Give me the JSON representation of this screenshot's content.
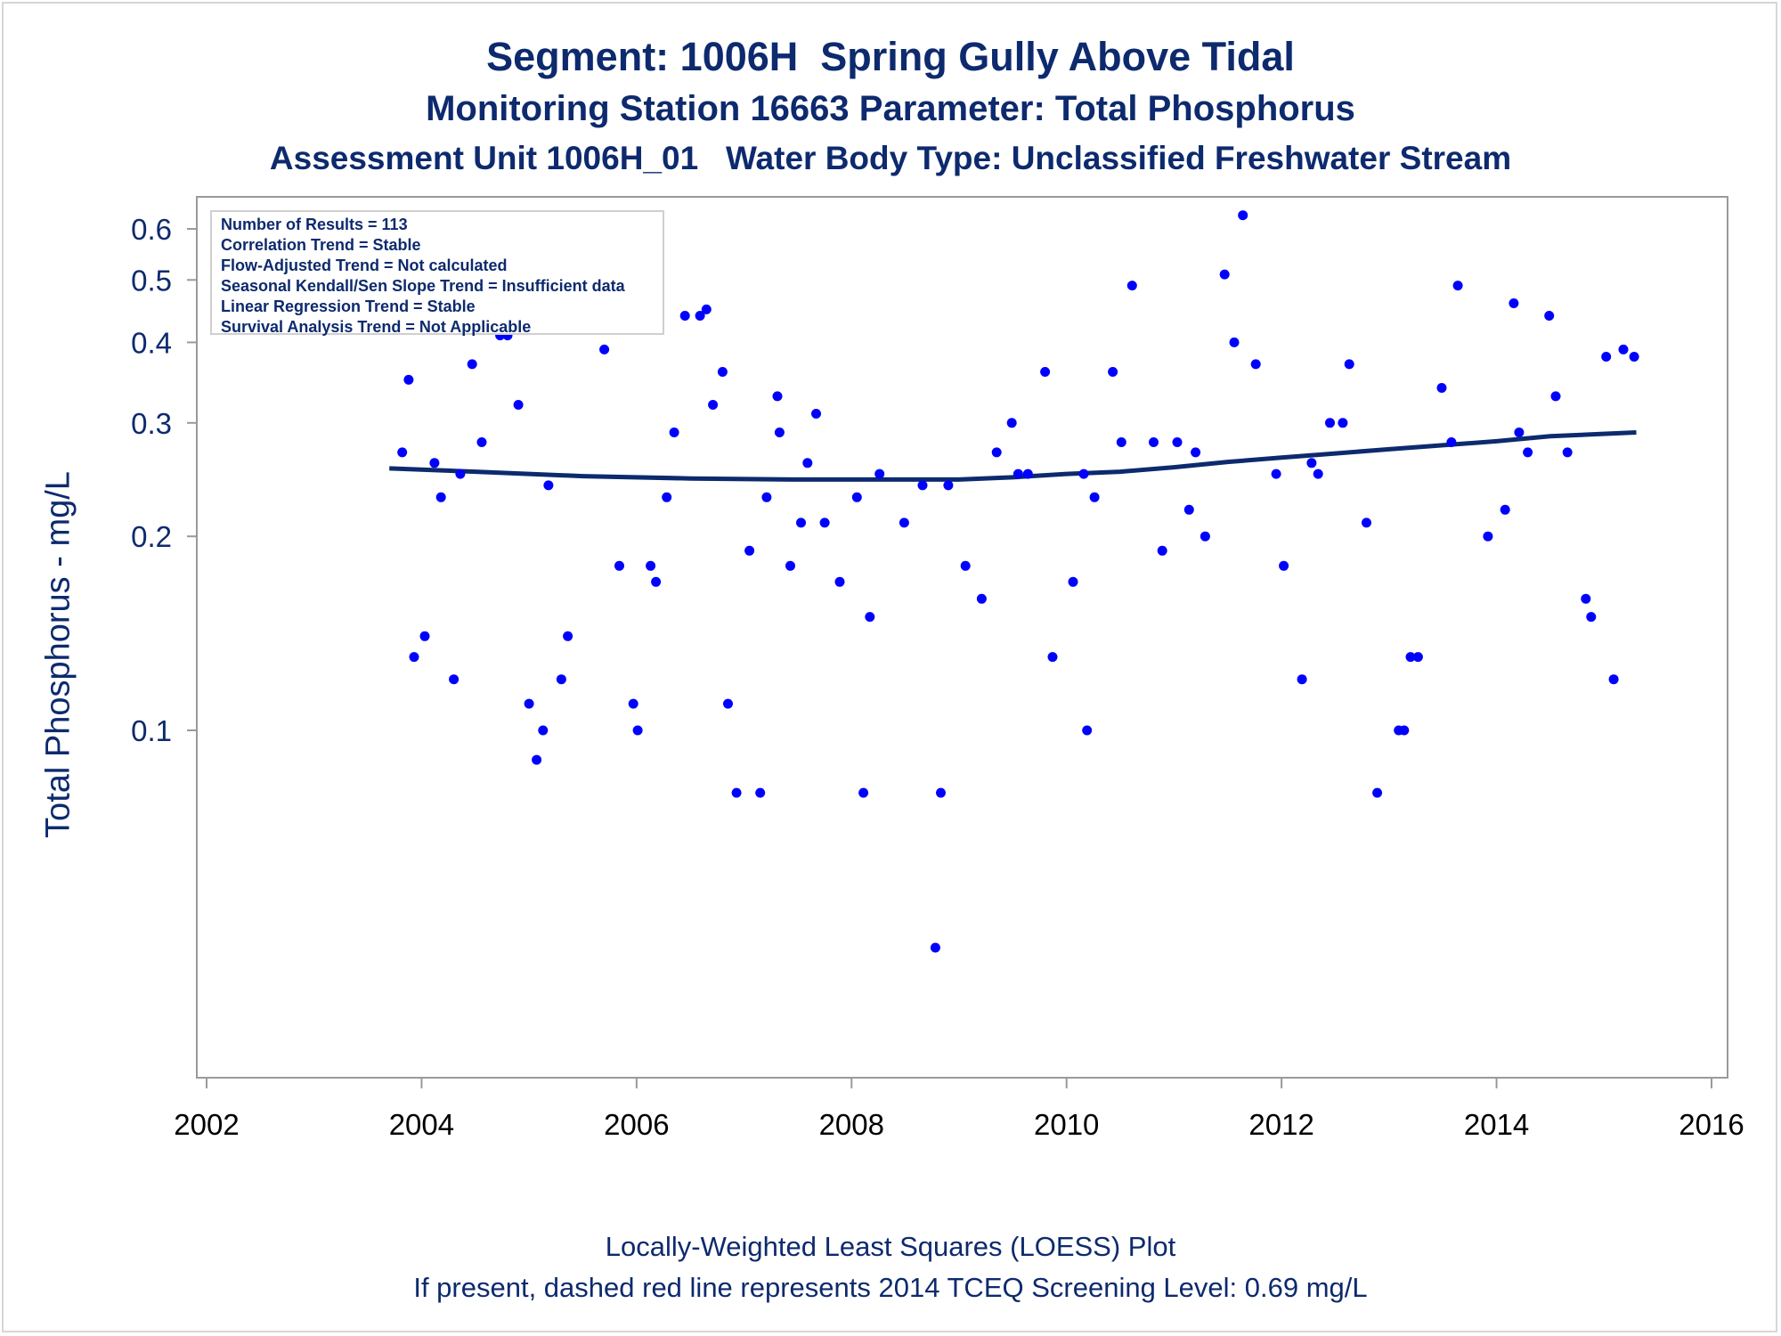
{
  "chart_data": {
    "type": "scatter",
    "title": "Segment: 1006H  Spring Gully Above Tidal",
    "subtitle": "Monitoring Station 16663 Parameter: Total Phosphorus",
    "subtitle2": "Assessment Unit 1006H_01   Water Body Type: Unclassified Freshwater Stream",
    "ylabel": "Total Phosphorus - mg/L",
    "xlabel": "",
    "footnote1": "Locally-Weighted Least Squares (LOESS) Plot",
    "footnote2": "If present, dashed red line represents 2014 TCEQ Screening Level: 0.69 mg/L",
    "y_scale": "log",
    "ylim": [
      0.04,
      0.65
    ],
    "xlim": [
      2002,
      2016
    ],
    "x_ticks": [
      2002,
      2004,
      2006,
      2008,
      2010,
      2012,
      2014,
      2016
    ],
    "y_ticks": [
      0.1,
      0.2,
      0.3,
      0.4,
      0.5,
      0.6
    ],
    "y_tick_labels": [
      "0.1",
      "0.2",
      "0.3",
      "0.4",
      "0.5",
      "0.6"
    ],
    "grid": false,
    "legend_placement": "top-left",
    "legend_lines": [
      "Number of Results = 113",
      "Correlation Trend = Stable",
      "Flow-Adjusted Trend = Not calculated",
      "Seasonal Kendall/Sen Slope Trend = Insufficient data",
      "Linear Regression Trend = Stable",
      "Survival Analysis Trend = Not Applicable"
    ],
    "colors": {
      "points": "#0000ff",
      "trend": "#0d2a6e",
      "text": "#0d2a6e"
    },
    "series": [
      {
        "type": "scatter",
        "points": [
          [
            2003.72,
            0.53
          ],
          [
            2003.82,
            0.27
          ],
          [
            2003.88,
            0.35
          ],
          [
            2003.93,
            0.13
          ],
          [
            2004.03,
            0.14
          ],
          [
            2004.12,
            0.26
          ],
          [
            2004.18,
            0.23
          ],
          [
            2004.3,
            0.12
          ],
          [
            2004.36,
            0.25
          ],
          [
            2004.47,
            0.37
          ],
          [
            2004.56,
            0.28
          ],
          [
            2004.61,
            0.45
          ],
          [
            2004.73,
            0.41
          ],
          [
            2004.8,
            0.41
          ],
          [
            2004.9,
            0.32
          ],
          [
            2005.0,
            0.11
          ],
          [
            2005.07,
            0.09
          ],
          [
            2005.13,
            0.1
          ],
          [
            2005.18,
            0.24
          ],
          [
            2005.3,
            0.12
          ],
          [
            2005.36,
            0.14
          ],
          [
            2005.7,
            0.39
          ],
          [
            2005.76,
            0.46
          ],
          [
            2005.84,
            0.18
          ],
          [
            2005.97,
            0.11
          ],
          [
            2006.01,
            0.1
          ],
          [
            2006.13,
            0.18
          ],
          [
            2006.18,
            0.17
          ],
          [
            2006.28,
            0.23
          ],
          [
            2006.35,
            0.29
          ],
          [
            2006.45,
            0.44
          ],
          [
            2006.59,
            0.44
          ],
          [
            2006.65,
            0.45
          ],
          [
            2006.71,
            0.32
          ],
          [
            2006.8,
            0.36
          ],
          [
            2006.85,
            0.11
          ],
          [
            2006.93,
            0.08
          ],
          [
            2007.05,
            0.19
          ],
          [
            2007.15,
            0.08
          ],
          [
            2007.21,
            0.23
          ],
          [
            2007.31,
            0.33
          ],
          [
            2007.33,
            0.29
          ],
          [
            2007.43,
            0.18
          ],
          [
            2007.53,
            0.21
          ],
          [
            2007.59,
            0.26
          ],
          [
            2007.67,
            0.31
          ],
          [
            2007.75,
            0.21
          ],
          [
            2007.89,
            0.17
          ],
          [
            2008.05,
            0.23
          ],
          [
            2008.11,
            0.08
          ],
          [
            2008.17,
            0.15
          ],
          [
            2008.26,
            0.25
          ],
          [
            2008.49,
            0.21
          ],
          [
            2008.66,
            0.24
          ],
          [
            2008.78,
            0.046
          ],
          [
            2008.83,
            0.08
          ],
          [
            2008.9,
            0.24
          ],
          [
            2009.06,
            0.18
          ],
          [
            2009.21,
            0.16
          ],
          [
            2009.35,
            0.27
          ],
          [
            2009.49,
            0.3
          ],
          [
            2009.55,
            0.25
          ],
          [
            2009.64,
            0.25
          ],
          [
            2009.8,
            0.36
          ],
          [
            2009.87,
            0.13
          ],
          [
            2010.06,
            0.17
          ],
          [
            2010.16,
            0.25
          ],
          [
            2010.19,
            0.1
          ],
          [
            2010.26,
            0.23
          ],
          [
            2010.43,
            0.36
          ],
          [
            2010.51,
            0.28
          ],
          [
            2010.61,
            0.49
          ],
          [
            2010.81,
            0.28
          ],
          [
            2010.89,
            0.19
          ],
          [
            2011.03,
            0.28
          ],
          [
            2011.14,
            0.22
          ],
          [
            2011.2,
            0.27
          ],
          [
            2011.29,
            0.2
          ],
          [
            2011.47,
            0.51
          ],
          [
            2011.56,
            0.4
          ],
          [
            2011.64,
            0.63
          ],
          [
            2011.76,
            0.37
          ],
          [
            2011.95,
            0.25
          ],
          [
            2012.02,
            0.18
          ],
          [
            2012.19,
            0.12
          ],
          [
            2012.28,
            0.26
          ],
          [
            2012.34,
            0.25
          ],
          [
            2012.45,
            0.3
          ],
          [
            2012.57,
            0.3
          ],
          [
            2012.63,
            0.37
          ],
          [
            2012.79,
            0.21
          ],
          [
            2012.89,
            0.08
          ],
          [
            2013.09,
            0.1
          ],
          [
            2013.14,
            0.1
          ],
          [
            2013.2,
            0.13
          ],
          [
            2013.27,
            0.13
          ],
          [
            2013.49,
            0.34
          ],
          [
            2013.58,
            0.28
          ],
          [
            2013.64,
            0.49
          ],
          [
            2013.92,
            0.2
          ],
          [
            2014.08,
            0.22
          ],
          [
            2014.16,
            0.46
          ],
          [
            2014.21,
            0.29
          ],
          [
            2014.29,
            0.27
          ],
          [
            2014.49,
            0.44
          ],
          [
            2014.55,
            0.33
          ],
          [
            2014.66,
            0.27
          ],
          [
            2014.83,
            0.16
          ],
          [
            2014.88,
            0.15
          ],
          [
            2015.02,
            0.38
          ],
          [
            2015.09,
            0.12
          ],
          [
            2015.18,
            0.39
          ],
          [
            2015.28,
            0.38
          ]
        ]
      },
      {
        "type": "line",
        "points": [
          [
            2003.7,
            0.255
          ],
          [
            2004.5,
            0.252
          ],
          [
            2005.5,
            0.248
          ],
          [
            2006.5,
            0.246
          ],
          [
            2007.5,
            0.245
          ],
          [
            2008.5,
            0.245
          ],
          [
            2009.0,
            0.245
          ],
          [
            2009.5,
            0.247
          ],
          [
            2010.0,
            0.25
          ],
          [
            2010.5,
            0.252
          ],
          [
            2011.0,
            0.256
          ],
          [
            2011.5,
            0.261
          ],
          [
            2012.0,
            0.265
          ],
          [
            2012.5,
            0.269
          ],
          [
            2013.0,
            0.273
          ],
          [
            2013.5,
            0.277
          ],
          [
            2014.0,
            0.281
          ],
          [
            2014.5,
            0.286
          ],
          [
            2015.3,
            0.29
          ]
        ]
      }
    ]
  }
}
